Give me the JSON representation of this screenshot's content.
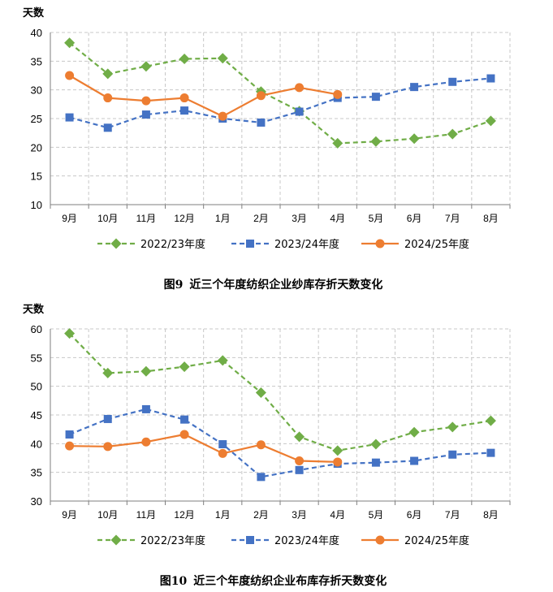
{
  "chart_data": [
    {
      "type": "line",
      "figure_label": "图9",
      "title": "近三个年度纺织企业纱库存折天数变化",
      "ylabel": "天数",
      "xlabel": "",
      "ylim": [
        10,
        40
      ],
      "yticks": [
        10,
        15,
        20,
        25,
        30,
        35,
        40
      ],
      "categories": [
        "9月",
        "10月",
        "11月",
        "12月",
        "1月",
        "2月",
        "3月",
        "4月",
        "5月",
        "6月",
        "7月",
        "8月"
      ],
      "grid": true,
      "legend_position": "bottom",
      "series": [
        {
          "name": "2022/23年度",
          "color": "#70AD47",
          "marker": "diamond",
          "dash": "dashed",
          "values": [
            38.2,
            32.8,
            34.1,
            35.4,
            35.5,
            29.7,
            26.3,
            20.7,
            21.0,
            21.5,
            22.3,
            24.6
          ]
        },
        {
          "name": "2023/24年度",
          "color": "#4472C4",
          "marker": "square",
          "dash": "dashed",
          "values": [
            25.2,
            23.4,
            25.7,
            26.4,
            25.0,
            24.3,
            26.2,
            28.6,
            28.8,
            30.5,
            31.4,
            32.0
          ]
        },
        {
          "name": "2024/25年度",
          "color": "#ED7D31",
          "marker": "circle",
          "dash": "solid",
          "values": [
            32.5,
            28.6,
            28.1,
            28.6,
            25.4,
            29.0,
            30.4,
            29.2,
            null,
            null,
            null,
            null
          ]
        }
      ]
    },
    {
      "type": "line",
      "figure_label": "图10",
      "title": "近三个年度纺织企业布库存折天数变化",
      "ylabel": "天数",
      "xlabel": "",
      "ylim": [
        30,
        60
      ],
      "yticks": [
        30,
        35,
        40,
        45,
        50,
        55,
        60
      ],
      "categories": [
        "9月",
        "10月",
        "11月",
        "12月",
        "1月",
        "2月",
        "3月",
        "4月",
        "5月",
        "6月",
        "7月",
        "8月"
      ],
      "grid": true,
      "legend_position": "bottom",
      "series": [
        {
          "name": "2022/23年度",
          "color": "#70AD47",
          "marker": "diamond",
          "dash": "dashed",
          "values": [
            59.2,
            52.3,
            52.6,
            53.4,
            54.5,
            48.9,
            41.2,
            38.8,
            39.9,
            42.0,
            42.9,
            44.0
          ]
        },
        {
          "name": "2023/24年度",
          "color": "#4472C4",
          "marker": "square",
          "dash": "dashed",
          "values": [
            41.6,
            44.3,
            46.0,
            44.2,
            39.9,
            34.2,
            35.4,
            36.5,
            36.7,
            37.0,
            38.1,
            38.4
          ]
        },
        {
          "name": "2024/25年度",
          "color": "#ED7D31",
          "marker": "circle",
          "dash": "solid",
          "values": [
            39.6,
            39.5,
            40.3,
            41.6,
            38.3,
            39.8,
            37.0,
            36.8,
            null,
            null,
            null,
            null
          ]
        }
      ]
    }
  ]
}
